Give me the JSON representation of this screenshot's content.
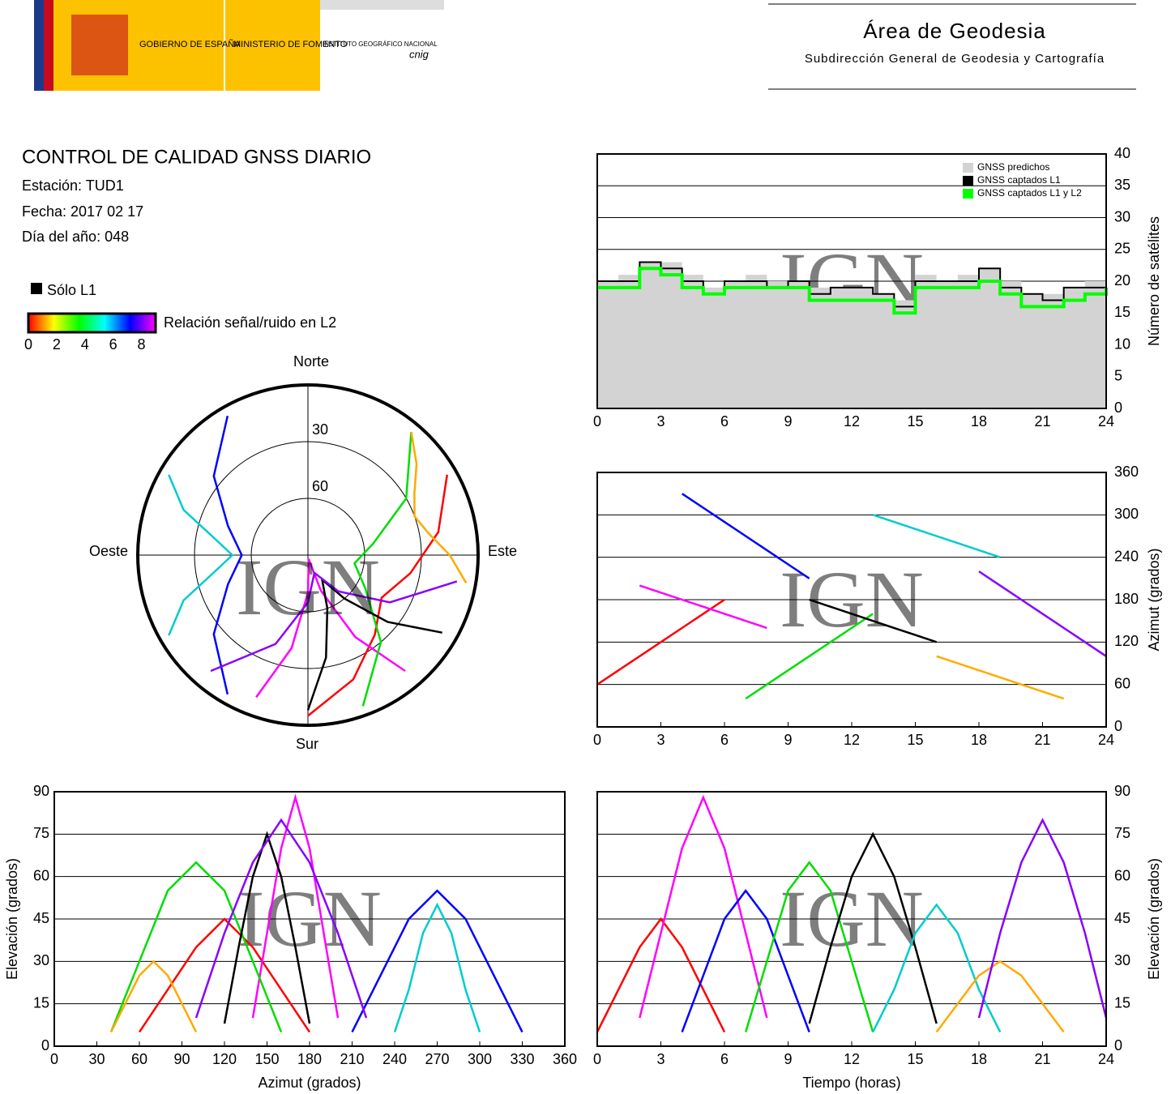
{
  "header": {
    "gov": "GOBIERNO DE ESPAÑA",
    "ministry": "MINISTERIO DE FOMENTO",
    "institute": "INSTITUTO GEOGRÁFICO NACIONAL",
    "cnig": "cnig",
    "area": "Área de Geodesia",
    "subdir": "Subdirección General de Geodesia y Cartografía"
  },
  "info": {
    "title": "CONTROL DE CALIDAD GNSS DIARIO",
    "station": "Estación: TUD1",
    "date": "Fecha: 2017 02 17",
    "doy": "Día del año: 048"
  },
  "legend": {
    "l1only": "Sólo L1",
    "snr": "Relación señal/ruido en L2",
    "ticks": [
      0,
      2,
      4,
      6,
      8
    ]
  },
  "watermark": "IGN",
  "tracks": [
    {
      "color": "#ff0000",
      "t": [
        0,
        1,
        2,
        3,
        4,
        5,
        6
      ],
      "az": [
        60,
        80,
        100,
        120,
        140,
        160,
        180
      ],
      "el": [
        5,
        20,
        35,
        45,
        35,
        20,
        5
      ]
    },
    {
      "color": "#ff00ff",
      "t": [
        2,
        3,
        4,
        5,
        6,
        7,
        8
      ],
      "az": [
        200,
        190,
        180,
        170,
        160,
        150,
        140
      ],
      "el": [
        10,
        40,
        70,
        88,
        70,
        40,
        10
      ]
    },
    {
      "color": "#0000ff",
      "t": [
        4,
        5,
        6,
        7,
        8,
        9,
        10
      ],
      "az": [
        330,
        310,
        290,
        270,
        250,
        230,
        210
      ],
      "el": [
        5,
        25,
        45,
        55,
        45,
        25,
        5
      ]
    },
    {
      "color": "#00dd00",
      "t": [
        7,
        8,
        9,
        10,
        11,
        12,
        13
      ],
      "az": [
        40,
        60,
        80,
        100,
        120,
        140,
        160
      ],
      "el": [
        5,
        30,
        55,
        65,
        55,
        30,
        5
      ]
    },
    {
      "color": "#000000",
      "t": [
        10,
        11,
        12,
        13,
        14,
        15,
        16
      ],
      "az": [
        180,
        170,
        160,
        150,
        140,
        130,
        120
      ],
      "el": [
        8,
        35,
        60,
        75,
        60,
        35,
        8
      ]
    },
    {
      "color": "#00cccc",
      "t": [
        13,
        14,
        15,
        16,
        17,
        18,
        19
      ],
      "az": [
        300,
        290,
        280,
        270,
        260,
        250,
        240
      ],
      "el": [
        5,
        20,
        40,
        50,
        40,
        20,
        5
      ]
    },
    {
      "color": "#ffaa00",
      "t": [
        16,
        17,
        18,
        19,
        20,
        21,
        22
      ],
      "az": [
        100,
        90,
        80,
        70,
        60,
        50,
        40
      ],
      "el": [
        5,
        15,
        25,
        30,
        25,
        15,
        5
      ]
    },
    {
      "color": "#8800ff",
      "t": [
        18,
        19,
        20,
        21,
        22,
        23,
        24
      ],
      "az": [
        220,
        200,
        180,
        160,
        140,
        120,
        100
      ],
      "el": [
        10,
        40,
        65,
        80,
        65,
        40,
        10
      ]
    }
  ],
  "chart_data": [
    {
      "type": "line",
      "ylabel": "Número de satélites",
      "xlim": [
        0,
        24
      ],
      "xticks": [
        0,
        3,
        6,
        9,
        12,
        15,
        18,
        21,
        24
      ],
      "ylim": [
        0,
        40
      ],
      "yticks": [
        0,
        5,
        10,
        15,
        20,
        25,
        30,
        35,
        40
      ],
      "grid": true,
      "x": [
        0,
        1,
        2,
        3,
        4,
        5,
        6,
        7,
        8,
        9,
        10,
        11,
        12,
        13,
        14,
        15,
        16,
        17,
        18,
        19,
        20,
        21,
        22,
        23,
        24
      ],
      "series": [
        {
          "name": "GNSS predichos",
          "color": "#d3d3d3",
          "values": [
            20,
            21,
            23,
            23,
            21,
            19,
            20,
            21,
            20,
            20,
            19,
            19,
            19,
            18,
            17,
            21,
            20,
            21,
            22,
            20,
            18,
            18,
            19,
            20,
            20
          ]
        },
        {
          "name": "GNSS captados L1",
          "color": "#000000",
          "values": [
            20,
            20,
            23,
            22,
            20,
            18,
            20,
            20,
            19,
            20,
            18,
            19,
            19,
            18,
            16,
            20,
            20,
            20,
            22,
            19,
            18,
            17,
            19,
            19,
            20
          ]
        },
        {
          "name": "GNSS captados L1 y L2",
          "color": "#00ff00",
          "values": [
            19,
            19,
            22,
            21,
            19,
            18,
            19,
            19,
            19,
            19,
            17,
            17,
            17,
            17,
            15,
            19,
            19,
            19,
            20,
            18,
            16,
            16,
            17,
            18,
            19
          ]
        }
      ]
    },
    {
      "type": "scatter",
      "ylabel": "Azimut (grados)",
      "xlim": [
        0,
        24
      ],
      "xticks": [
        0,
        3,
        6,
        9,
        12,
        15,
        18,
        21,
        24
      ],
      "ylim": [
        0,
        360
      ],
      "yticks": [
        0,
        60,
        120,
        180,
        240,
        300,
        360
      ],
      "grid": true
    },
    {
      "type": "scatter",
      "xlabel": "Azimut (grados)",
      "ylabel": "Elevación (grados)",
      "xlim": [
        0,
        360
      ],
      "xticks": [
        0,
        30,
        60,
        90,
        120,
        150,
        180,
        210,
        240,
        270,
        300,
        330,
        360
      ],
      "ylim": [
        0,
        90
      ],
      "yticks": [
        0,
        15,
        30,
        45,
        60,
        75,
        90
      ],
      "grid": true
    },
    {
      "type": "scatter",
      "xlabel": "Tiempo (horas)",
      "ylabel": "Elevación (grados)",
      "xlim": [
        0,
        24
      ],
      "xticks": [
        0,
        3,
        6,
        9,
        12,
        15,
        18,
        21,
        24
      ],
      "ylim": [
        0,
        90
      ],
      "yticks": [
        0,
        15,
        30,
        45,
        60,
        75,
        90
      ],
      "grid": true
    },
    {
      "type": "polar",
      "north": "Norte",
      "south": "Sur",
      "east": "Este",
      "west": "Oeste",
      "rings": [
        30,
        60
      ]
    }
  ]
}
